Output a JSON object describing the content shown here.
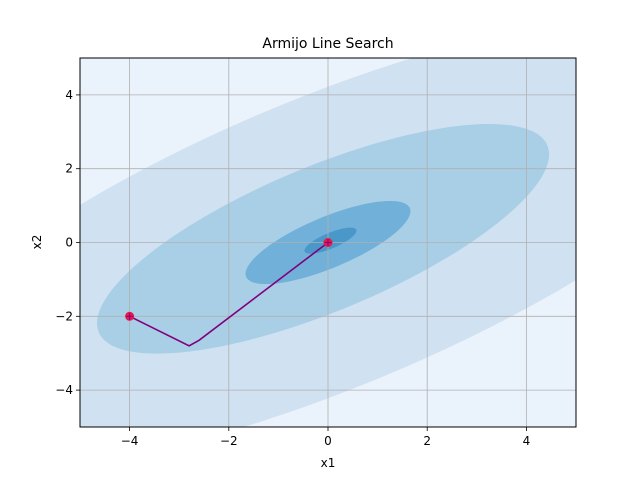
{
  "chart_data": {
    "type": "contour-with-path",
    "title": "Armijo Line Search",
    "xlabel": "x1",
    "ylabel": "x2",
    "xlim": [
      -5,
      5
    ],
    "ylim": [
      -5,
      5
    ],
    "xticks": [
      -4,
      -2,
      0,
      2,
      4
    ],
    "yticks": [
      -4,
      -2,
      0,
      2,
      4
    ],
    "xtick_labels": [
      "−4",
      "−2",
      "0",
      "2",
      "4"
    ],
    "ytick_labels": [
      "−4",
      "−2",
      "0",
      "2",
      "4"
    ],
    "grid": true,
    "contour_fills": [
      {
        "level": 1,
        "color": "#eaf2fb"
      },
      {
        "level": 2,
        "color": "#d0e1f2"
      },
      {
        "level": 3,
        "color": "#a8cfe5"
      },
      {
        "level": 4,
        "color": "#71b1d9"
      },
      {
        "level": 5,
        "color": "#4a98c9"
      }
    ],
    "contour_regions": [
      {
        "level": 2,
        "center": [
          0,
          0
        ],
        "angle_deg": 31,
        "a": 10.4,
        "b": 3.7
      },
      {
        "level": 3,
        "center": [
          -0.1,
          0.1
        ],
        "angle_deg": 31,
        "a": 5.2,
        "b": 1.85
      },
      {
        "level": 4,
        "center": [
          0,
          0
        ],
        "angle_deg": 31,
        "a": 1.9,
        "b": 0.65
      },
      {
        "level": 5,
        "center": [
          0.05,
          0.05
        ],
        "angle_deg": 31,
        "a": 0.6,
        "b": 0.2
      }
    ],
    "path": {
      "color": "#800080",
      "points": [
        [
          -4,
          -2
        ],
        [
          -2.8,
          -2.8
        ],
        [
          -2.6,
          -2.65
        ],
        [
          0,
          0
        ]
      ]
    },
    "markers": {
      "color": "#e6194b",
      "points": [
        [
          -4,
          -2
        ],
        [
          0,
          0
        ]
      ]
    },
    "colors": {
      "grid": "#b0b0b0",
      "axes": "#000000"
    }
  }
}
